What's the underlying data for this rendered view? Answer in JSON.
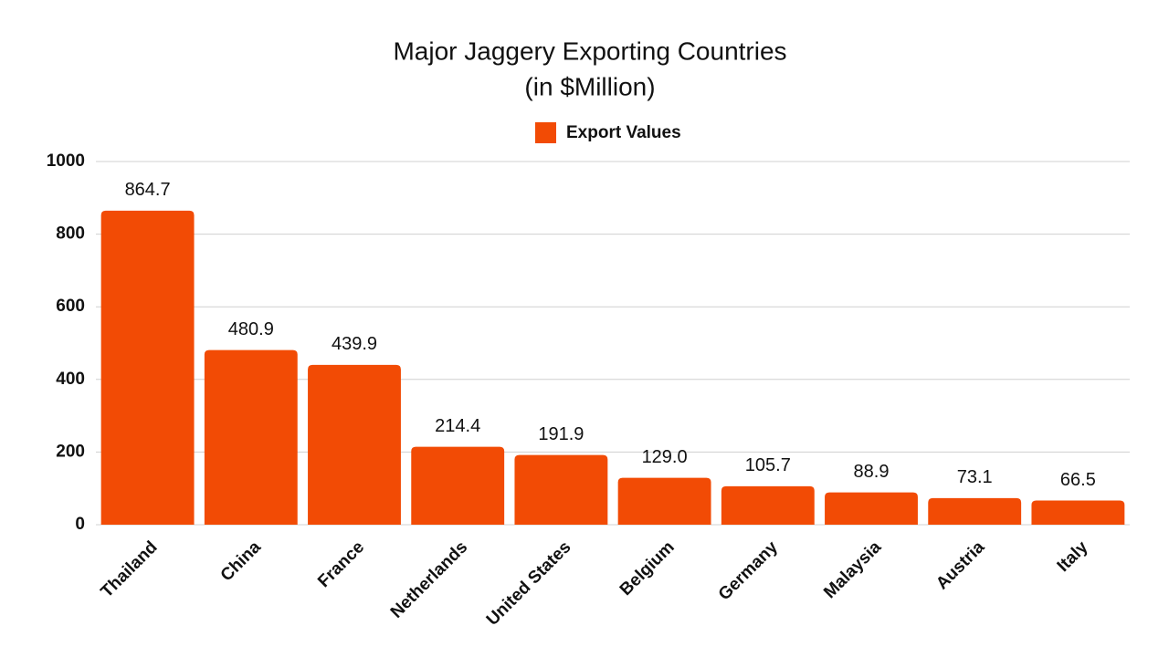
{
  "chart_data": {
    "type": "bar",
    "title": "Major Jaggery Exporting Countries",
    "subtitle": "(in $Million)",
    "categories": [
      "Thailand",
      "China",
      "France",
      "Netherlands",
      "United States",
      "Belgium",
      "Germany",
      "Malaysia",
      "Austria",
      "Italy"
    ],
    "series": [
      {
        "name": "Export Values",
        "color": "#f24b05",
        "values": [
          864.7,
          480.9,
          439.9,
          214.4,
          191.9,
          129.0,
          105.7,
          88.9,
          73.1,
          66.5
        ],
        "value_labels": [
          "864.7",
          "480.9",
          "439.9",
          "214.4",
          "191.9",
          "129.0",
          "105.7",
          "88.9",
          "73.1",
          "66.5"
        ]
      }
    ],
    "ylim": [
      0,
      1000
    ],
    "yticks": [
      0,
      200,
      400,
      600,
      800,
      1000
    ],
    "grid": true,
    "legend": "top"
  }
}
